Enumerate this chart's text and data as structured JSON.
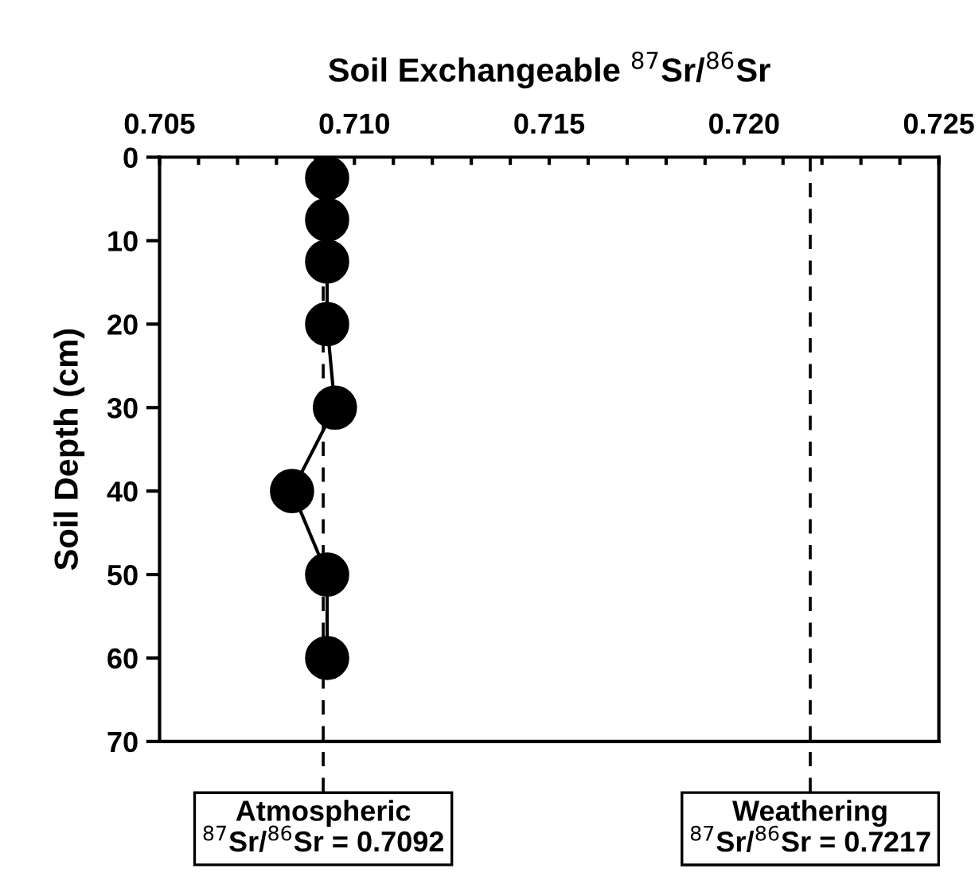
{
  "chart_data": {
    "type": "line",
    "xlabel": "Soil Exchangeable $^{87}$Sr/$^{86}$Sr",
    "ylabel": "Soil Depth (cm)",
    "series": [
      {
        "color": "#000000",
        "x": [
          0.7093,
          0.7093,
          0.7093,
          0.7093,
          0.7095,
          0.7084,
          0.7093,
          0.7093
        ],
        "values": [
          2.5,
          7.5,
          12.5,
          20,
          30,
          40,
          50,
          60
        ]
      }
    ],
    "marker": "circle",
    "line_style": "solid",
    "xlim": [
      0.705,
      0.725
    ],
    "xticks": [
      0.705,
      {
        "value": 0.706,
        "label": null
      },
      {
        "value": 0.707,
        "label": null
      },
      {
        "value": 0.708,
        "label": null
      },
      {
        "value": 0.709,
        "label": null
      },
      {
        "value": 0.71,
        "label": "0.710"
      },
      {
        "value": 0.711,
        "label": null
      },
      {
        "value": 0.712,
        "label": null
      },
      {
        "value": 0.713,
        "label": null
      },
      {
        "value": 0.714,
        "label": null
      },
      0.715,
      {
        "value": 0.716,
        "label": null
      },
      {
        "value": 0.717,
        "label": null
      },
      {
        "value": 0.718,
        "label": null
      },
      {
        "value": 0.719,
        "label": null
      },
      {
        "value": 0.72,
        "label": "0.720"
      },
      {
        "value": 0.721,
        "label": null
      },
      {
        "value": 0.722,
        "label": null
      },
      {
        "value": 0.723,
        "label": null
      },
      {
        "value": 0.724,
        "label": null
      },
      0.725
    ],
    "ylim": [
      70,
      0
    ],
    "yticks": [
      0,
      10,
      20,
      30,
      40,
      50,
      60,
      70
    ],
    "ref_lines": [
      {
        "axis": "x",
        "value": 0.7092,
        "label": "Atmospheric\n$^{87}$Sr/$^{86}$Sr = 0.7092",
        "color": "#000000",
        "line_style": "dashed"
      },
      {
        "axis": "x",
        "value": 0.7217,
        "label": "Weathering\n$^{87}$Sr/$^{86}$Sr = 0.7217",
        "color": "#000000",
        "line_style": "dashed"
      }
    ],
    "grid": false,
    "legend": false
  }
}
